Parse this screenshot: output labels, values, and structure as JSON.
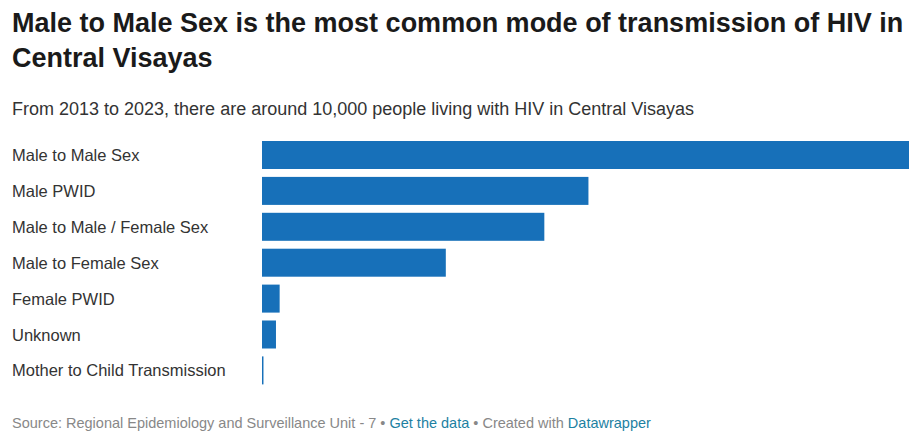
{
  "chart_data": {
    "type": "bar",
    "orientation": "horizontal",
    "title": "Male to Male Sex is the most common mode of transmission of HIV in Central Visayas",
    "subtitle": "From 2013 to 2023, there are around 10,000 people living with HIV in Central Visayas",
    "categories": [
      "Male to Male Sex",
      "Male PWID",
      "Male to Male / Female Sex",
      "Male to Female Sex",
      "Female PWID",
      "Unknown",
      "Mother to Child Transmission"
    ],
    "values": [
      4400,
      2220,
      1920,
      1250,
      120,
      95,
      10
    ],
    "color": "#1770b9",
    "xlim": [
      0,
      4400
    ],
    "grid": false,
    "tick_labels": false,
    "source": "Source: Regional Epidemiology and Surveillance Unit - 7",
    "source_link": "Get the data",
    "credit_prefix": "Created with",
    "credit": "Datawrapper",
    "separator": "•"
  }
}
